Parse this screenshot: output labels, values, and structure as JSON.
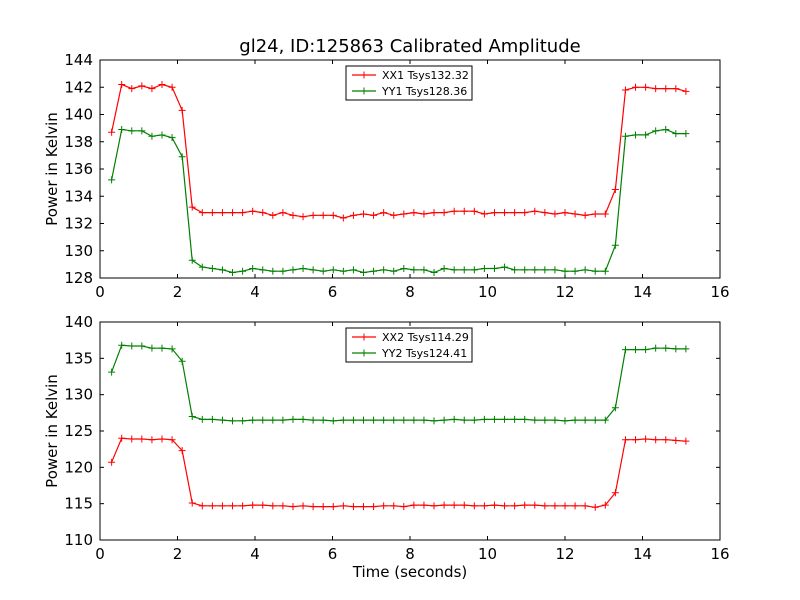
{
  "figure_title": "gl24, ID:125863 Calibrated Amplitude",
  "chart_data": [
    {
      "type": "line",
      "title": "gl24, ID:125863 Calibrated Amplitude",
      "xlabel": "",
      "ylabel": "Power in Kelvin",
      "xlim": [
        0,
        16
      ],
      "ylim": [
        128,
        144
      ],
      "xticks": [
        0,
        2,
        4,
        6,
        8,
        10,
        12,
        14,
        16
      ],
      "yticks": [
        128,
        130,
        132,
        134,
        136,
        138,
        140,
        142,
        144
      ],
      "grid": false,
      "legend": "top-center",
      "x": [
        0.3,
        0.56,
        0.82,
        1.08,
        1.34,
        1.6,
        1.86,
        2.12,
        2.38,
        2.64,
        2.9,
        3.16,
        3.42,
        3.68,
        3.94,
        4.2,
        4.46,
        4.72,
        4.98,
        5.24,
        5.5,
        5.76,
        6.02,
        6.28,
        6.54,
        6.8,
        7.06,
        7.32,
        7.58,
        7.84,
        8.1,
        8.36,
        8.62,
        8.88,
        9.14,
        9.4,
        9.66,
        9.92,
        10.18,
        10.44,
        10.7,
        10.96,
        11.22,
        11.48,
        11.74,
        12.0,
        12.26,
        12.52,
        12.78,
        13.04,
        13.3,
        13.56,
        13.82,
        14.08,
        14.34,
        14.6,
        14.86,
        15.12
      ],
      "series": [
        {
          "name": "XX1 Tsys132.32",
          "color": "#ff0000",
          "values": [
            138.7,
            142.2,
            141.9,
            142.1,
            141.9,
            142.2,
            142.0,
            140.3,
            133.2,
            132.8,
            132.8,
            132.8,
            132.8,
            132.8,
            132.9,
            132.8,
            132.6,
            132.8,
            132.6,
            132.5,
            132.6,
            132.6,
            132.6,
            132.4,
            132.6,
            132.7,
            132.6,
            132.8,
            132.6,
            132.7,
            132.8,
            132.7,
            132.8,
            132.8,
            132.9,
            132.9,
            132.9,
            132.7,
            132.8,
            132.8,
            132.8,
            132.8,
            132.9,
            132.8,
            132.7,
            132.8,
            132.7,
            132.6,
            132.7,
            132.7,
            134.5,
            141.8,
            142.0,
            142.0,
            141.9,
            141.9,
            141.9,
            141.7
          ]
        },
        {
          "name": "YY1 Tsys128.36",
          "color": "#008000",
          "values": [
            135.2,
            138.9,
            138.8,
            138.8,
            138.4,
            138.5,
            138.3,
            136.9,
            129.3,
            128.8,
            128.7,
            128.6,
            128.4,
            128.5,
            128.7,
            128.6,
            128.5,
            128.5,
            128.6,
            128.7,
            128.6,
            128.5,
            128.6,
            128.5,
            128.6,
            128.4,
            128.5,
            128.6,
            128.5,
            128.7,
            128.6,
            128.6,
            128.4,
            128.7,
            128.6,
            128.6,
            128.6,
            128.7,
            128.7,
            128.8,
            128.6,
            128.6,
            128.6,
            128.6,
            128.6,
            128.5,
            128.5,
            128.6,
            128.5,
            128.5,
            130.4,
            138.4,
            138.5,
            138.5,
            138.8,
            138.9,
            138.6,
            138.6
          ]
        }
      ]
    },
    {
      "type": "line",
      "title": "",
      "xlabel": "Time (seconds)",
      "ylabel": "Power in Kelvin",
      "xlim": [
        0,
        16
      ],
      "ylim": [
        110,
        140
      ],
      "xticks": [
        0,
        2,
        4,
        6,
        8,
        10,
        12,
        14,
        16
      ],
      "yticks": [
        110,
        115,
        120,
        125,
        130,
        135,
        140
      ],
      "grid": false,
      "legend": "top-center",
      "x": [
        0.3,
        0.56,
        0.82,
        1.08,
        1.34,
        1.6,
        1.86,
        2.12,
        2.38,
        2.64,
        2.9,
        3.16,
        3.42,
        3.68,
        3.94,
        4.2,
        4.46,
        4.72,
        4.98,
        5.24,
        5.5,
        5.76,
        6.02,
        6.28,
        6.54,
        6.8,
        7.06,
        7.32,
        7.58,
        7.84,
        8.1,
        8.36,
        8.62,
        8.88,
        9.14,
        9.4,
        9.66,
        9.92,
        10.18,
        10.44,
        10.7,
        10.96,
        11.22,
        11.48,
        11.74,
        12.0,
        12.26,
        12.52,
        12.78,
        13.04,
        13.3,
        13.56,
        13.82,
        14.08,
        14.34,
        14.6,
        14.86,
        15.12
      ],
      "series": [
        {
          "name": "XX2 Tsys114.29",
          "color": "#ff0000",
          "values": [
            120.7,
            124.0,
            123.9,
            123.9,
            123.8,
            123.9,
            123.8,
            122.3,
            115.1,
            114.7,
            114.7,
            114.7,
            114.7,
            114.7,
            114.8,
            114.8,
            114.7,
            114.7,
            114.6,
            114.7,
            114.6,
            114.6,
            114.6,
            114.7,
            114.6,
            114.6,
            114.6,
            114.7,
            114.7,
            114.6,
            114.8,
            114.8,
            114.7,
            114.8,
            114.8,
            114.8,
            114.7,
            114.7,
            114.8,
            114.7,
            114.7,
            114.8,
            114.8,
            114.7,
            114.7,
            114.7,
            114.7,
            114.7,
            114.5,
            114.8,
            116.5,
            123.8,
            123.8,
            123.9,
            123.8,
            123.8,
            123.7,
            123.6
          ]
        },
        {
          "name": "YY2 Tsys124.41",
          "color": "#008000",
          "values": [
            133.1,
            136.8,
            136.7,
            136.7,
            136.4,
            136.4,
            136.3,
            134.6,
            127.0,
            126.6,
            126.6,
            126.5,
            126.4,
            126.4,
            126.5,
            126.5,
            126.5,
            126.5,
            126.6,
            126.6,
            126.5,
            126.5,
            126.4,
            126.5,
            126.5,
            126.5,
            126.5,
            126.5,
            126.5,
            126.5,
            126.5,
            126.5,
            126.4,
            126.5,
            126.6,
            126.5,
            126.5,
            126.6,
            126.6,
            126.6,
            126.6,
            126.6,
            126.5,
            126.5,
            126.5,
            126.4,
            126.5,
            126.5,
            126.5,
            126.5,
            128.2,
            136.2,
            136.2,
            136.2,
            136.4,
            136.4,
            136.3,
            136.3
          ]
        }
      ]
    }
  ]
}
